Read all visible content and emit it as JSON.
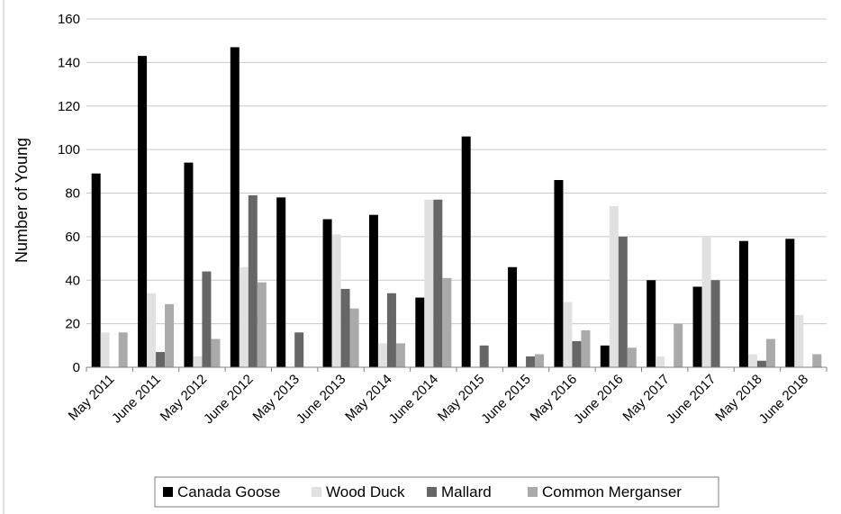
{
  "chart_data": {
    "type": "bar",
    "title": "",
    "xlabel": "",
    "ylabel": "Number of Young",
    "ylim": [
      0,
      160
    ],
    "yticks": [
      0,
      20,
      40,
      60,
      80,
      100,
      120,
      140,
      160
    ],
    "grid": true,
    "legend_position": "bottom",
    "categories": [
      "May 2011",
      "June 2011",
      "May 2012",
      "June 2012",
      "May 2013",
      "June 2013",
      "May 2014",
      "June 2014",
      "May 2015",
      "June 2015",
      "May 2016",
      "June 2016",
      "May 2017",
      "June 2017",
      "May 2018",
      "June 2018"
    ],
    "series": [
      {
        "name": "Canada Goose",
        "color": "#000000",
        "values": [
          89,
          143,
          94,
          147,
          78,
          68,
          70,
          32,
          106,
          46,
          86,
          10,
          40,
          37,
          58,
          59
        ]
      },
      {
        "name": "Wood Duck",
        "color": "#e1e1e1",
        "values": [
          16,
          34,
          5,
          46,
          0,
          61,
          11,
          77,
          0,
          0,
          30,
          74,
          5,
          60,
          6,
          24
        ]
      },
      {
        "name": "Mallard",
        "color": "#666666",
        "values": [
          0,
          7,
          44,
          79,
          16,
          36,
          34,
          77,
          10,
          5,
          12,
          60,
          0,
          40,
          3,
          0
        ]
      },
      {
        "name": "Common Merganser",
        "color": "#aaaaaa",
        "values": [
          16,
          29,
          13,
          39,
          0,
          27,
          11,
          41,
          0,
          6,
          17,
          9,
          20,
          0,
          13,
          6
        ]
      }
    ]
  }
}
